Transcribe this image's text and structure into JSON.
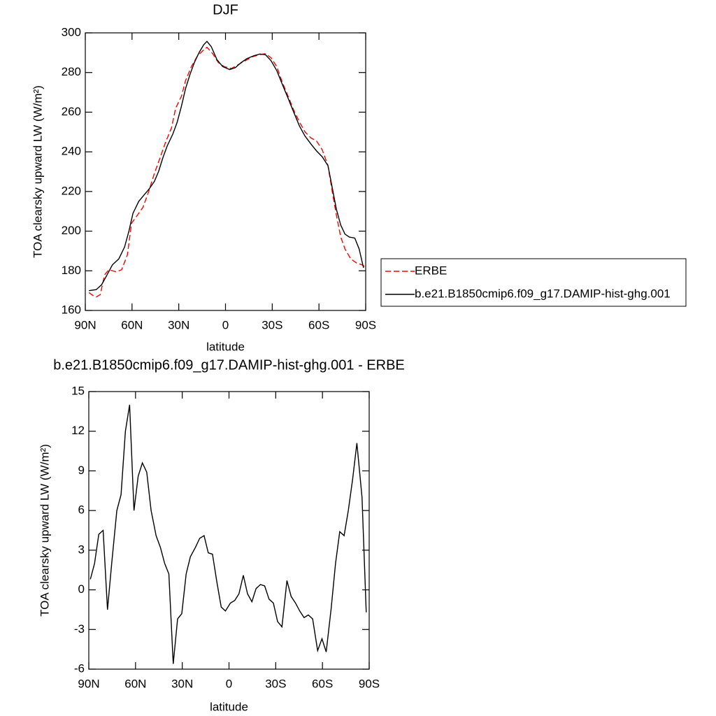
{
  "chart_data": [
    {
      "type": "line",
      "title": "DJF",
      "xlabel": "latitude",
      "ylabel": "TOA clearsky upward LW (W/m²)",
      "xlim": [
        90,
        -90
      ],
      "xticks": [
        {
          "value": 90,
          "label": "90N"
        },
        {
          "value": 60,
          "label": "60N"
        },
        {
          "value": 30,
          "label": "30N"
        },
        0,
        {
          "value": -30,
          "label": "30S"
        },
        {
          "value": -60,
          "label": "60S"
        },
        {
          "value": -90,
          "label": "90S"
        }
      ],
      "ylim": [
        160,
        300
      ],
      "yticks": [
        160,
        180,
        200,
        220,
        240,
        260,
        280,
        300
      ],
      "legend": "right",
      "series": [
        {
          "name": "ERBE",
          "color": "#ff0000",
          "dash": true,
          "x": [
            87.7,
            85,
            83,
            80.4,
            77.6,
            74.9,
            70.3,
            66.7,
            63,
            60.3,
            56.6,
            53,
            49.3,
            45.7,
            42,
            38.4,
            34.7,
            32,
            28.3,
            25.6,
            21.9,
            18.3,
            14.6,
            11.9,
            8.2,
            4.6,
            0.9,
            -3.7,
            -8.2,
            -12.8,
            -17.4,
            -21.9,
            -25.6,
            -29.2,
            -32.9,
            -36.5,
            -40.2,
            -43.8,
            -47.5,
            -51.1,
            -54.8,
            -58.4,
            -62.1,
            -65.8,
            -68.5,
            -71.2,
            -74,
            -76.7,
            -80.4,
            -84,
            -87.7,
            -89.5
          ],
          "values": [
            169,
            167.5,
            166.8,
            168,
            178,
            180.5,
            179.5,
            180.5,
            188,
            204,
            208,
            212,
            220,
            229,
            237,
            245,
            252,
            262,
            268,
            276,
            283,
            288,
            291,
            292.7,
            289.5,
            285,
            283,
            282,
            284,
            286,
            288,
            289,
            289.5,
            287.5,
            283,
            275,
            268,
            261,
            255,
            250,
            247,
            245.5,
            241,
            233,
            220,
            208,
            197,
            191,
            186,
            184,
            183,
            182
          ]
        },
        {
          "name": "b.e21.B1850cmip6.f09_g17.DAMIP-hist-ghg.001",
          "color": "#000000",
          "dash": false,
          "x": [
            87.7,
            83,
            79.5,
            76,
            72.6,
            68.5,
            64.8,
            62,
            59.4,
            55.7,
            52,
            49.3,
            45.7,
            43,
            40.2,
            37.4,
            33.8,
            31,
            28.3,
            25.6,
            22.8,
            20,
            17,
            14,
            11.9,
            9.1,
            5.5,
            1.8,
            -2.7,
            -6.4,
            -10,
            -13.7,
            -18.3,
            -22,
            -25.6,
            -29.2,
            -32.9,
            -36.5,
            -40.2,
            -43.8,
            -47.5,
            -51,
            -54.8,
            -58.4,
            -62.1,
            -65.8,
            -68.5,
            -71.2,
            -74,
            -76.7,
            -79.5,
            -83,
            -85.8,
            -88.6
          ],
          "values": [
            170,
            170.5,
            173,
            178,
            183,
            186,
            192,
            200,
            209,
            215,
            218.5,
            221,
            225,
            230,
            237,
            243,
            249,
            255,
            263,
            272,
            279,
            285,
            290,
            294,
            295.7,
            293,
            286.5,
            283,
            281.5,
            282.5,
            285,
            287,
            288.5,
            289.3,
            289,
            286,
            281,
            274,
            267,
            260,
            253,
            248,
            244,
            240.5,
            237.5,
            233,
            222,
            211,
            203,
            198.5,
            197,
            196.5,
            191,
            181.5
          ]
        }
      ]
    },
    {
      "type": "line",
      "title": "b.e21.B1850cmip6.f09_g17.DAMIP-hist-ghg.001 - ERBE",
      "xlabel": "latitude",
      "ylabel": "TOA clearsky upward LW (W/m²)",
      "xlim": [
        90,
        -90
      ],
      "xticks": [
        {
          "value": 90,
          "label": "90N"
        },
        {
          "value": 60,
          "label": "60N"
        },
        {
          "value": 30,
          "label": "30N"
        },
        0,
        {
          "value": -30,
          "label": "30S"
        },
        {
          "value": -60,
          "label": "60S"
        },
        {
          "value": -90,
          "label": "90S"
        }
      ],
      "ylim": [
        -6,
        15
      ],
      "yticks": [
        -6,
        -3,
        0,
        3,
        6,
        9,
        12,
        15
      ],
      "series": [
        {
          "color": "#000000",
          "dash": false,
          "x": [
            89,
            86.3,
            83.6,
            80.8,
            78,
            75.3,
            72,
            69.3,
            66.5,
            63.8,
            61,
            58.3,
            55.6,
            52.8,
            50,
            46.8,
            44,
            41.3,
            38.6,
            35.8,
            33,
            30.3,
            27.5,
            24.8,
            21.6,
            18.8,
            16,
            13.3,
            10.6,
            7.8,
            5,
            2.3,
            -0.9,
            -3.7,
            -6.4,
            -9.2,
            -11.9,
            -14.7,
            -17.4,
            -20.2,
            -22.9,
            -25.7,
            -28.5,
            -31.2,
            -34,
            -37.2,
            -39.9,
            -42.7,
            -45.4,
            -48.2,
            -50.9,
            -53.7,
            -56.9,
            -59.7,
            -62.4,
            -65.6,
            -68.4,
            -71.1,
            -73.9,
            -76.6,
            -79.4,
            -82.1,
            -85.4,
            -88.1
          ],
          "values": [
            0.8,
            2.0,
            4.2,
            4.5,
            -1.5,
            2.0,
            6.0,
            7.2,
            12.0,
            14.0,
            6.0,
            8.6,
            9.6,
            8.9,
            6.0,
            4.1,
            3.2,
            2.0,
            1.2,
            -5.6,
            -2.2,
            -1.8,
            1.2,
            2.5,
            3.2,
            3.9,
            4.1,
            2.8,
            2.7,
            0.6,
            -1.3,
            -1.6,
            -1.0,
            -0.8,
            -0.3,
            1.1,
            -0.3,
            -0.9,
            0.1,
            0.4,
            0.3,
            -0.7,
            -1.0,
            -2.4,
            -2.8,
            0.7,
            -0.5,
            -1.0,
            -1.6,
            -2.1,
            -1.9,
            -2.2,
            -4.6,
            -3.7,
            -4.7,
            -1.4,
            2.0,
            4.4,
            4.1,
            6.0,
            8.4,
            11.1,
            7.0,
            -1.7
          ]
        }
      ]
    }
  ]
}
